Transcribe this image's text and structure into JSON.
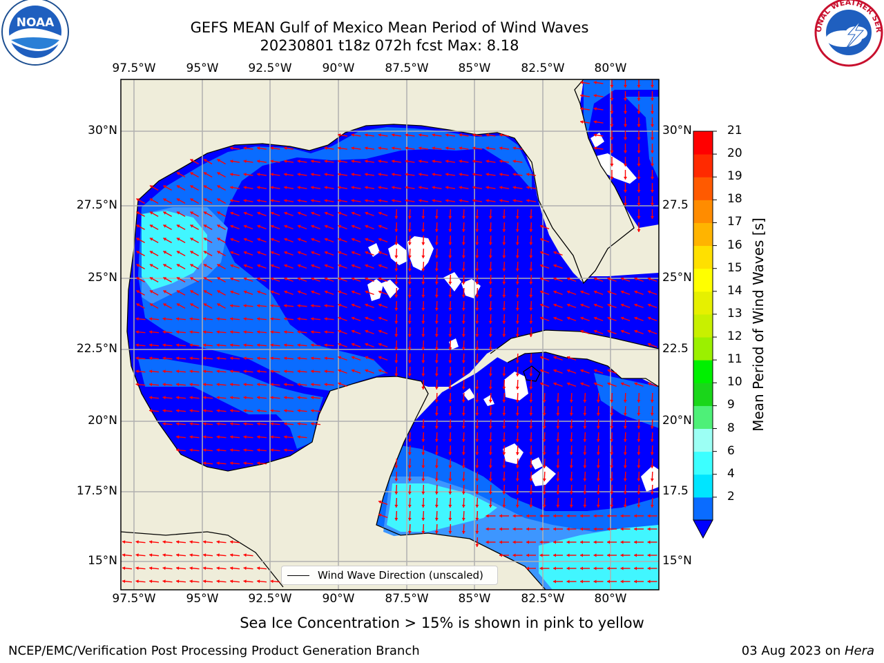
{
  "title": "GEFS MEAN Gulf of Mexico Mean Period of Wind Waves",
  "subtitle": "20230801 t18z 072h fcst   Max: 8.18",
  "x_ticks": [
    "97.5°W",
    "95°W",
    "92.5°W",
    "90°W",
    "87.5°W",
    "85°W",
    "82.5°W",
    "80°W"
  ],
  "y_ticks_left": [
    "30°N",
    "27.5°N",
    "25°N",
    "22.5°N",
    "20°N",
    "17.5°N",
    "15°N"
  ],
  "y_ticks_right": [
    "30°N",
    "27.5",
    "25°N",
    "22.5",
    "20°N",
    "17.5",
    "15°N"
  ],
  "colorbar": {
    "label": "Mean Period of Wind Waves [s]",
    "ticks": [
      "21",
      "20",
      "19",
      "18",
      "17",
      "16",
      "15",
      "14",
      "13",
      "12",
      "11",
      "10",
      "9",
      "8",
      "6",
      "4",
      "2"
    ],
    "levels": [
      2,
      4,
      6,
      8,
      9,
      10,
      11,
      12,
      13,
      14,
      15,
      16,
      17,
      18,
      19,
      20,
      21
    ],
    "colors": [
      "#0a6cff",
      "#00e5ff",
      "#3cffff",
      "#9cfff4",
      "#4ef078",
      "#1ad61a",
      "#00f000",
      "#9bf000",
      "#c8f000",
      "#e6f000",
      "#ffff00",
      "#ffe000",
      "#ffb400",
      "#ff8c00",
      "#ff5a00",
      "#ff2a00",
      "#ff0000"
    ],
    "extend_color": "#0000ff"
  },
  "legend": {
    "label": "Wind Wave Direction (unscaled)"
  },
  "footnote": "Sea Ice Concentration > 15% is shown in pink to yellow",
  "credit": "NCEP/EMC/Verification Post Processing Product Generation Branch",
  "date_stamp": "03 Aug 2023 on ",
  "machine": "Hera",
  "logos": {
    "left": "noaa-logo",
    "right": "nws-logo",
    "left_text": "NOAA",
    "right_text": "NATIONAL WEATHER SERVICE"
  },
  "colors": {
    "land": "#efedda",
    "deep": "#0000ff",
    "mid": "#0a6cff",
    "light": "#3d96ff",
    "cyan": "#41f6ff",
    "arrow": "#ff0000"
  }
}
